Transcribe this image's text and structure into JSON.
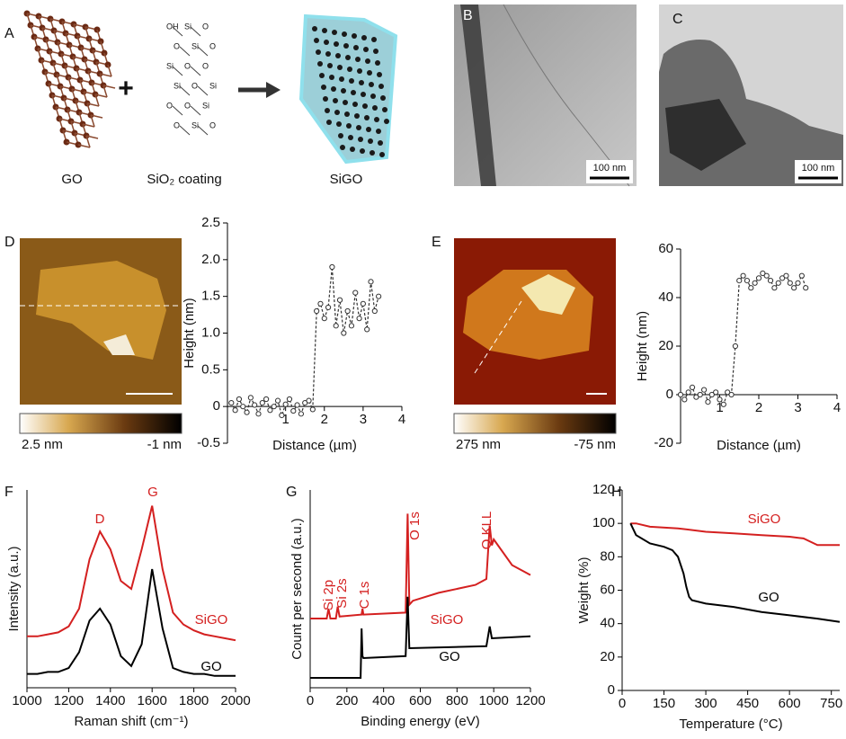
{
  "figure": {
    "panel_A": "A",
    "go_label": "GO",
    "plus": "+",
    "coating_label": "SiO₂ coating",
    "sigo_label": "SiGO",
    "atoms": [
      "OH",
      "Si",
      "O",
      "O",
      "Si",
      "O",
      "Si",
      "O",
      "O",
      "Si",
      "O",
      "Si",
      "O",
      "O",
      "Si",
      "O",
      "Si",
      "O"
    ],
    "panel_B": "B",
    "scale_B": "100 nm",
    "panel_C": "C",
    "scale_C": "100 nm",
    "colorbar_D": [
      "2.5 nm",
      "-1 nm"
    ],
    "colorbar_E": [
      "275 nm",
      "-75 nm"
    ]
  },
  "chart_data": [
    {
      "panel": "D",
      "type": "line",
      "markers": true,
      "line_style": "dashed",
      "color": "#333333",
      "xlabel": "Distance (µm)",
      "ylabel": "Height (nm)",
      "x": [
        -0.4,
        -0.3,
        -0.2,
        -0.1,
        0,
        0.1,
        0.2,
        0.3,
        0.4,
        0.5,
        0.6,
        0.7,
        0.8,
        0.9,
        1,
        1.1,
        1.2,
        1.3,
        1.4,
        1.5,
        1.6,
        1.7,
        1.8,
        1.9,
        2,
        2.1,
        2.2,
        2.3,
        2.4,
        2.5,
        2.6,
        2.7,
        2.8,
        2.9,
        3,
        3.1,
        3.2,
        3.3,
        3.4
      ],
      "values": [
        0.05,
        -0.05,
        0.1,
        0,
        -0.08,
        0.12,
        0.02,
        -0.1,
        0.05,
        0.1,
        -0.05,
        0,
        0.08,
        -0.12,
        0.03,
        0.1,
        -0.06,
        0.02,
        -0.1,
        0.05,
        0.08,
        -0.04,
        1.3,
        1.4,
        1.2,
        1.35,
        1.9,
        1.1,
        1.45,
        1.0,
        1.3,
        1.1,
        1.55,
        1.2,
        1.4,
        1.05,
        1.7,
        1.3,
        1.5
      ],
      "xlim": [
        -0.5,
        4
      ],
      "ylim": [
        -0.5,
        2.5
      ],
      "xticks": [
        1,
        2,
        3,
        4
      ],
      "yticks": [
        -0.5,
        0,
        0.5,
        {
          "value": 1,
          "label": "1.0"
        },
        1.5,
        {
          "value": 2,
          "label": "2.0"
        },
        2.5
      ]
    },
    {
      "panel": "E",
      "type": "line",
      "markers": true,
      "line_style": "dashed",
      "color": "#333333",
      "xlabel": "Distance (µm)",
      "ylabel": "Height (nm)",
      "x": [
        0,
        0.1,
        0.2,
        0.3,
        0.4,
        0.5,
        0.6,
        0.7,
        0.8,
        0.9,
        1,
        1.1,
        1.2,
        1.3,
        1.4,
        1.5,
        1.6,
        1.7,
        1.8,
        1.9,
        2,
        2.1,
        2.2,
        2.3,
        2.4,
        2.5,
        2.6,
        2.7,
        2.8,
        2.9,
        3,
        3.1,
        3.2
      ],
      "values": [
        0,
        -2,
        1,
        3,
        -1,
        0,
        2,
        -3,
        0,
        1,
        -2,
        -4,
        1,
        0,
        20,
        47,
        49,
        47,
        44,
        46,
        48,
        50,
        49,
        47,
        44,
        46,
        48,
        49,
        46,
        44,
        46,
        49,
        44
      ],
      "xlim": [
        0,
        4
      ],
      "ylim": [
        -20,
        60
      ],
      "xticks": [
        1,
        2,
        3,
        4
      ],
      "yticks": [
        -20,
        0,
        20,
        40,
        60
      ]
    },
    {
      "panel": "F",
      "type": "line",
      "xlabel": "Raman shift (cm⁻¹)",
      "ylabel": "Intensity (a.u.)",
      "x": [
        1000,
        1050,
        1100,
        1150,
        1200,
        1250,
        1300,
        1350,
        1400,
        1450,
        1500,
        1550,
        1600,
        1650,
        1700,
        1750,
        1800,
        1850,
        1900,
        1950,
        2000
      ],
      "series": [
        {
          "name": "SiGO",
          "color": "#d42020",
          "values": [
            26,
            26,
            27,
            28,
            31,
            40,
            65,
            79,
            70,
            54,
            50,
            70,
            92,
            60,
            38,
            32,
            29,
            27,
            26,
            25,
            24
          ]
        },
        {
          "name": "GO",
          "color": "#000000",
          "values": [
            7,
            7,
            8,
            8,
            10,
            18,
            34,
            40,
            32,
            16,
            11,
            22,
            60,
            30,
            10,
            8,
            7,
            7,
            6,
            6,
            6
          ]
        }
      ],
      "annotations": [
        "D",
        "G"
      ],
      "xlim": [
        1000,
        2000
      ],
      "ylim": [
        0,
        100
      ],
      "xticks": [
        1000,
        1200,
        1400,
        1600,
        1800,
        2000
      ]
    },
    {
      "panel": "G",
      "type": "line",
      "xlabel": "Binding energy (eV)",
      "ylabel": "Count per second (a.u.)",
      "series": [
        {
          "name": "SiGO",
          "color": "#d42020",
          "x": [
            0,
            90,
            100,
            110,
            140,
            150,
            160,
            280,
            285,
            290,
            520,
            531,
            540,
            560,
            700,
            900,
            960,
            978,
            990,
            1000,
            1100,
            1200
          ],
          "values": [
            35,
            35,
            40,
            35,
            35,
            41,
            36,
            37,
            40,
            37,
            38,
            88,
            42,
            44,
            48,
            52,
            55,
            82,
            72,
            75,
            62,
            57
          ]
        },
        {
          "name": "GO",
          "color": "#000000",
          "x": [
            0,
            275,
            280,
            285,
            290,
            520,
            531,
            540,
            960,
            978,
            990,
            1200
          ],
          "values": [
            5,
            5,
            30,
            16,
            15,
            16,
            46,
            20,
            21,
            31,
            25,
            26
          ]
        }
      ],
      "annotations": [
        "Si 2p",
        "Si 2s",
        "C 1s",
        "O 1s",
        "O KLL"
      ],
      "xlim": [
        0,
        1200
      ],
      "ylim": [
        0,
        100
      ],
      "xticks": [
        0,
        200,
        400,
        600,
        800,
        1000,
        1200
      ]
    },
    {
      "panel": "H",
      "type": "line",
      "xlabel": "Temperature (°C)",
      "ylabel": "Weight (%)",
      "series": [
        {
          "name": "SiGO",
          "color": "#d42020",
          "x": [
            30,
            50,
            100,
            200,
            300,
            400,
            500,
            600,
            650,
            700,
            780
          ],
          "values": [
            100,
            100,
            98,
            97,
            95,
            94,
            93,
            92,
            91,
            87,
            87
          ]
        },
        {
          "name": "GO",
          "color": "#000000",
          "x": [
            30,
            50,
            100,
            150,
            180,
            200,
            220,
            230,
            240,
            250,
            300,
            400,
            500,
            600,
            700,
            780
          ],
          "values": [
            100,
            93,
            88,
            86,
            84,
            80,
            70,
            62,
            56,
            54,
            52,
            50,
            47,
            45,
            43,
            41
          ]
        }
      ],
      "xlim": [
        0,
        780
      ],
      "ylim": [
        0,
        120
      ],
      "xticks": [
        0,
        150,
        300,
        450,
        600,
        750
      ],
      "yticks": [
        0,
        20,
        40,
        60,
        80,
        100,
        120
      ]
    }
  ]
}
